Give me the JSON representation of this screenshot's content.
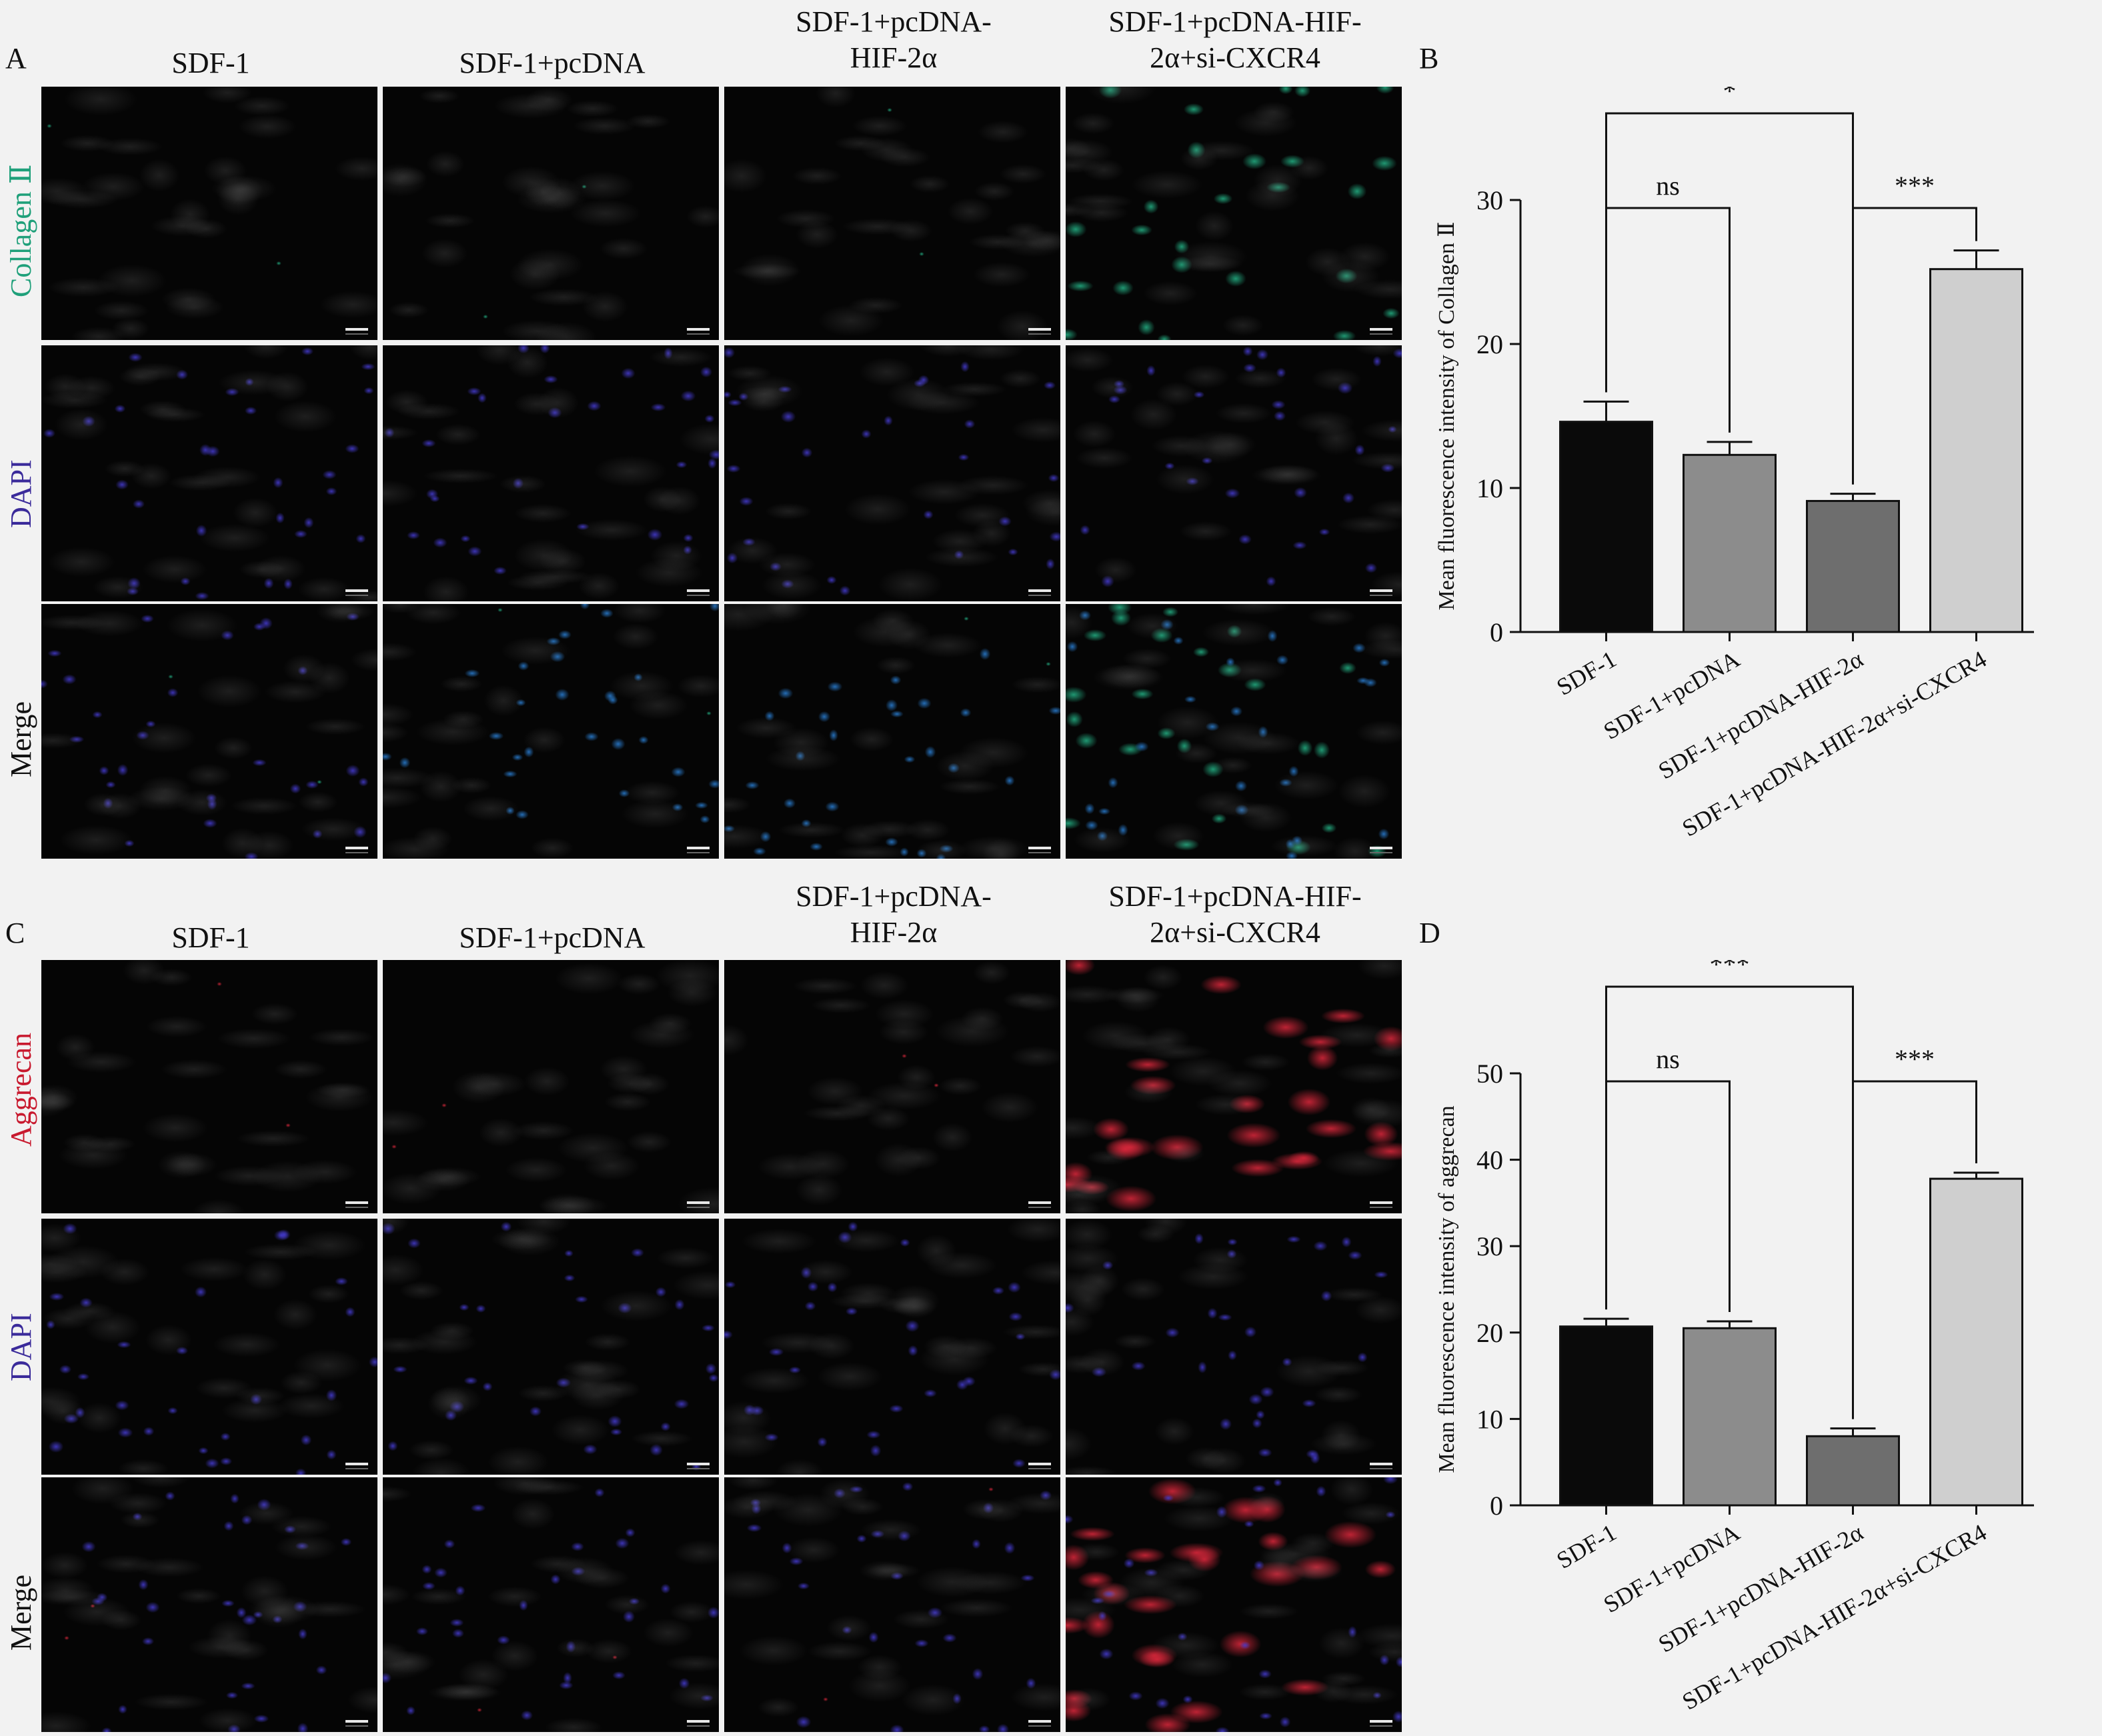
{
  "panels": {
    "A": "A",
    "B": "B",
    "C": "C",
    "D": "D"
  },
  "columns": [
    "SDF-1",
    "SDF-1+pcDNA",
    "SDF-1+pcDNA-HIF-2α",
    "SDF-1+pcDNA-HIF-2α+si-CXCR4"
  ],
  "column_headers": [
    [
      "SDF-1"
    ],
    [
      "SDF-1+pcDNA"
    ],
    [
      "SDF-1+pcDNA-",
      "HIF-2α"
    ],
    [
      "SDF-1+pcDNA-HIF-",
      "2α+si-CXCR4"
    ]
  ],
  "rows_top": [
    "Collagen Ⅱ",
    "DAPI",
    "Merge"
  ],
  "rows_bottom": [
    "Aggrecan",
    "DAPI",
    "Merge"
  ],
  "colors": {
    "collagen": "#1fa07a",
    "aggrecan": "#c8192e",
    "dapi": "#3a2a9a",
    "merge": "#111111",
    "bars": [
      "#0a0a0a",
      "#8c8c8c",
      "#6e6e6e",
      "#cfcfcf"
    ]
  },
  "chart_data": [
    {
      "type": "bar",
      "panel": "B",
      "categories": [
        "SDF-1",
        "SDF-1+pcDNA",
        "SDF-1+pcDNA-HIF-2α",
        "SDF-1+pcDNA-HIF-2α+si-CXCR4"
      ],
      "values": [
        14.6,
        12.3,
        9.1,
        25.2
      ],
      "errors": [
        1.4,
        0.9,
        0.5,
        1.3
      ],
      "ylabel": "Mean fluorescence intensity of Collagen Ⅱ",
      "ylim": [
        0,
        30
      ],
      "yticks": [
        0,
        10,
        20,
        30
      ],
      "significance": [
        {
          "from": 0,
          "to": 2,
          "label": "*"
        },
        {
          "from": 0,
          "to": 1,
          "label": "ns"
        },
        {
          "from": 2,
          "to": 3,
          "label": "***"
        }
      ]
    },
    {
      "type": "bar",
      "panel": "D",
      "categories": [
        "SDF-1",
        "SDF-1+pcDNA",
        "SDF-1+pcDNA-HIF-2α",
        "SDF-1+pcDNA-HIF-2α+si-CXCR4"
      ],
      "values": [
        20.7,
        20.5,
        8.0,
        37.8
      ],
      "errors": [
        0.9,
        0.8,
        0.9,
        0.7
      ],
      "ylabel": "Mean fluorescence intensity of aggrecan",
      "ylim": [
        0,
        50
      ],
      "yticks": [
        0,
        10,
        20,
        30,
        40,
        50
      ],
      "significance": [
        {
          "from": 0,
          "to": 2,
          "label": "***"
        },
        {
          "from": 0,
          "to": 1,
          "label": "ns"
        },
        {
          "from": 2,
          "to": 3,
          "label": "***"
        }
      ]
    }
  ]
}
